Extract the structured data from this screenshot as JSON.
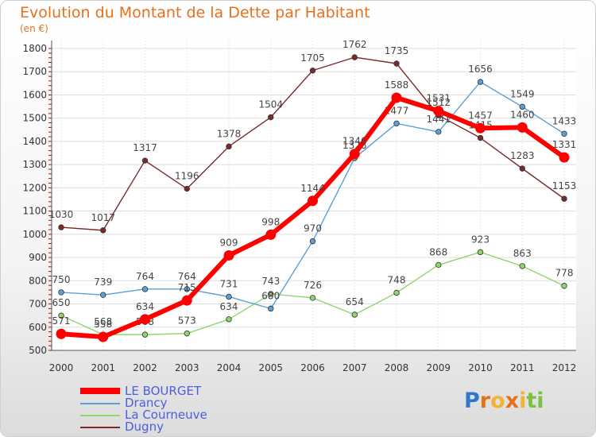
{
  "header": {
    "title": "Evolution du Montant de la Dette par Habitant",
    "unit": "(en €)"
  },
  "logo": {
    "text": "Proxiti"
  },
  "chart_data": {
    "type": "line",
    "title": "Evolution du Montant de la Dette par Habitant",
    "ylabel": "(en €)",
    "xlabel": "",
    "x": [
      "2000",
      "2001",
      "2002",
      "2003",
      "2004",
      "2005",
      "2006",
      "2007",
      "2008",
      "2009",
      "2010",
      "2011",
      "2012"
    ],
    "ylim": [
      500,
      1800
    ],
    "yticks": [
      500,
      600,
      700,
      800,
      900,
      1000,
      1100,
      1200,
      1300,
      1400,
      1500,
      1600,
      1700,
      1800
    ],
    "grid": "horizontal",
    "legend_position": "bottom-left",
    "series": [
      {
        "name": "LE BOURGET",
        "color": "#ff0000",
        "width": 6,
        "values": [
          571,
          558,
          634,
          715,
          909,
          998,
          1144,
          1346,
          1588,
          1531,
          1457,
          1460,
          1331
        ],
        "labels": [
          "571",
          "558",
          "634",
          "715",
          "909",
          "998",
          "1144",
          "1346",
          "1588",
          "1531",
          "1457",
          "1460",
          "1331"
        ]
      },
      {
        "name": "Drancy",
        "color": "#5ba0d6",
        "width": 1.4,
        "values": [
          750,
          739,
          764,
          764,
          731,
          680,
          970,
          1328,
          1477,
          1441,
          1656,
          1549,
          1433
        ],
        "labels": [
          "750",
          "739",
          "764",
          "764",
          "731",
          "680",
          "970",
          "1328",
          "1477",
          "1441",
          "1656",
          "1549",
          "1433"
        ]
      },
      {
        "name": "La Courneuve",
        "color": "#90d56e",
        "width": 1.4,
        "values": [
          650,
          568,
          568,
          573,
          634,
          743,
          726,
          654,
          748,
          868,
          923,
          863,
          778
        ],
        "labels": [
          "650",
          "568",
          "568",
          "573",
          "634",
          "743",
          "726",
          "654",
          "748",
          "868",
          "923",
          "863",
          "778"
        ]
      },
      {
        "name": "Dugny",
        "color": "#7a2a2a",
        "width": 1.4,
        "values": [
          1030,
          1017,
          1317,
          1196,
          1378,
          1504,
          1705,
          1762,
          1735,
          1512,
          1415,
          1283,
          1153
        ],
        "labels": [
          "1030",
          "1017",
          "1317",
          "1196",
          "1378",
          "1504",
          "1705",
          "1762",
          "1735",
          "1512",
          "1415",
          "1283",
          "1153"
        ]
      }
    ]
  }
}
